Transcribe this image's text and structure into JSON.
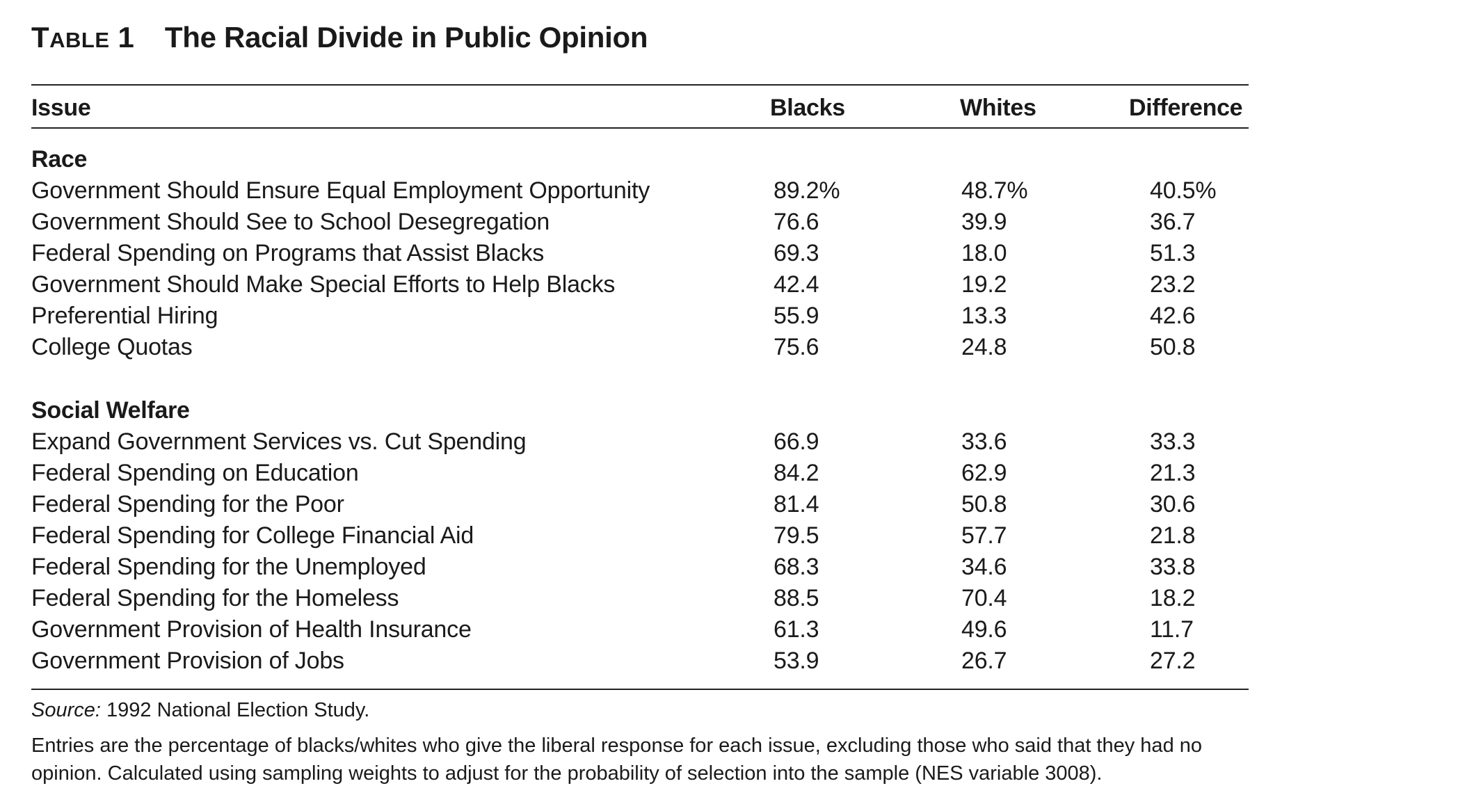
{
  "title": {
    "label_first": "T",
    "label_rest": "ABLE",
    "number": "1",
    "text": "The Racial Divide in Public Opinion"
  },
  "columns": {
    "issue": "Issue",
    "blacks": "Blacks",
    "whites": "Whites",
    "difference": "Difference"
  },
  "sections": [
    {
      "title": "Race",
      "rows": [
        {
          "issue": "Government Should Ensure Equal Employment Opportunity",
          "blacks": "89.2%",
          "whites": "48.7%",
          "difference": "40.5%"
        },
        {
          "issue": "Government Should See to School Desegregation",
          "blacks": "76.6",
          "whites": "39.9",
          "difference": "36.7"
        },
        {
          "issue": "Federal Spending on Programs that Assist Blacks",
          "blacks": "69.3",
          "whites": "18.0",
          "difference": "51.3"
        },
        {
          "issue": "Government Should Make Special Efforts to Help Blacks",
          "blacks": "42.4",
          "whites": "19.2",
          "difference": "23.2"
        },
        {
          "issue": "Preferential Hiring",
          "blacks": "55.9",
          "whites": "13.3",
          "difference": "42.6"
        },
        {
          "issue": "College Quotas",
          "blacks": "75.6",
          "whites": "24.8",
          "difference": "50.8"
        }
      ]
    },
    {
      "title": "Social Welfare",
      "rows": [
        {
          "issue": "Expand Government Services vs. Cut Spending",
          "blacks": "66.9",
          "whites": "33.6",
          "difference": "33.3"
        },
        {
          "issue": "Federal Spending on Education",
          "blacks": "84.2",
          "whites": "62.9",
          "difference": "21.3"
        },
        {
          "issue": "Federal Spending for the Poor",
          "blacks": "81.4",
          "whites": "50.8",
          "difference": "30.6"
        },
        {
          "issue": "Federal Spending for College Financial Aid",
          "blacks": "79.5",
          "whites": "57.7",
          "difference": "21.8"
        },
        {
          "issue": "Federal Spending for the Unemployed",
          "blacks": "68.3",
          "whites": "34.6",
          "difference": "33.8"
        },
        {
          "issue": "Federal Spending for the Homeless",
          "blacks": "88.5",
          "whites": "70.4",
          "difference": "18.2"
        },
        {
          "issue": "Government Provision of Health Insurance",
          "blacks": "61.3",
          "whites": "49.6",
          "difference": "11.7"
        },
        {
          "issue": "Government Provision of Jobs",
          "blacks": "53.9",
          "whites": "26.7",
          "difference": "27.2"
        }
      ]
    }
  ],
  "source": {
    "label": "Source:",
    "text": " 1992 National Election Study."
  },
  "note": "Entries are the percentage of blacks/whites who give the liberal response for each issue, excluding those who said that they had no opinion. Calculated using sampling weights to adjust for the probability of selection into the sample (NES variable 3008)."
}
